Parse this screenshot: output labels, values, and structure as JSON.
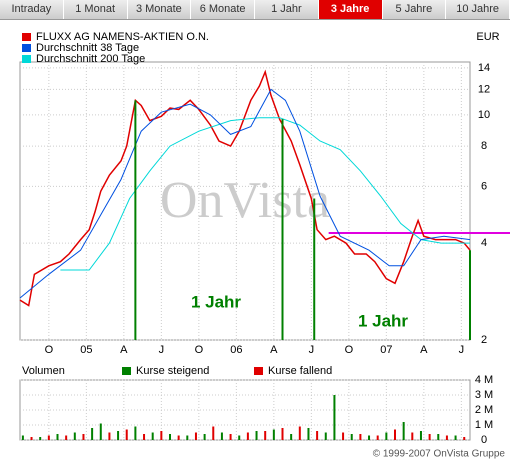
{
  "tabs": [
    "Intraday",
    "1 Monat",
    "3 Monate",
    "6 Monate",
    "1 Jahr",
    "3 Jahre",
    "5 Jahre",
    "10 Jahre"
  ],
  "active_tab": 5,
  "currency": "EUR",
  "watermark": "OnVista",
  "footer": "© 1999-2007 OnVista Gruppe",
  "chart_data": [
    {
      "type": "line",
      "log_y": true,
      "grid": true,
      "xlim": [
        0,
        156
      ],
      "ylim": [
        2,
        14.6
      ],
      "yticks": [
        2,
        4,
        6,
        8,
        10,
        12,
        14
      ],
      "xticks": [
        {
          "value": 10,
          "label": "O"
        },
        {
          "value": 23,
          "label": "05"
        },
        {
          "value": 36,
          "label": "A"
        },
        {
          "value": 49,
          "label": "J"
        },
        {
          "value": 62,
          "label": "O"
        },
        {
          "value": 75,
          "label": "06"
        },
        {
          "value": 88,
          "label": "A"
        },
        {
          "value": 101,
          "label": "J"
        },
        {
          "value": 114,
          "label": "O"
        },
        {
          "value": 127,
          "label": "07"
        },
        {
          "value": 140,
          "label": "A"
        },
        {
          "value": 153,
          "label": "J"
        }
      ],
      "series": [
        {
          "name": "FLUXX AG NAMENS-AKTIEN O.N.",
          "color": "#e00000",
          "x": [
            0,
            3,
            5,
            10,
            14,
            17,
            21,
            24,
            26,
            28,
            31,
            35,
            37,
            40,
            42,
            45,
            49,
            52,
            55,
            59,
            62,
            66,
            69,
            73,
            76,
            80,
            83,
            85,
            87,
            90,
            94,
            97,
            101,
            103,
            106,
            109,
            113,
            116,
            120,
            123,
            127,
            130,
            133,
            136,
            138,
            140,
            144,
            147,
            151,
            154,
            156
          ],
          "values": [
            2.66,
            2.56,
            3.2,
            3.4,
            3.5,
            3.7,
            4.1,
            4.4,
            5.0,
            5.8,
            6.5,
            7.2,
            8.0,
            11.1,
            10.7,
            9.6,
            9.9,
            10.5,
            10.4,
            11.1,
            10.4,
            9.3,
            8.3,
            8.0,
            8.9,
            11.1,
            12.3,
            13.6,
            11.5,
            9.7,
            8.3,
            7.0,
            5.5,
            4.4,
            4.1,
            4.2,
            4.0,
            3.7,
            3.7,
            3.5,
            3.1,
            3.0,
            3.5,
            4.2,
            4.7,
            4.2,
            4.1,
            4.1,
            4.1,
            4.0,
            3.8
          ]
        },
        {
          "name": "Durchschnitt 38 Tage",
          "color": "#0050e0",
          "x": [
            0,
            10,
            21,
            28,
            35,
            42,
            49,
            59,
            66,
            73,
            80,
            87,
            92,
            97,
            104,
            111,
            121,
            128,
            133,
            139,
            147,
            156
          ],
          "values": [
            2.7,
            3.2,
            3.8,
            4.9,
            6.3,
            8.9,
            10.2,
            10.8,
            10.0,
            8.7,
            9.2,
            12.0,
            11.1,
            8.9,
            5.6,
            4.2,
            3.8,
            3.4,
            3.4,
            4.1,
            4.2,
            4.1
          ]
        },
        {
          "name": "Durchschnitt 200 Tage",
          "color": "#00d8d8",
          "x": [
            14,
            24,
            31,
            38,
            45,
            52,
            62,
            73,
            83,
            90,
            97,
            104,
            111,
            118,
            125,
            132,
            139,
            146,
            156
          ],
          "values": [
            3.3,
            3.3,
            4.0,
            5.5,
            6.7,
            8.0,
            8.9,
            9.6,
            9.8,
            9.8,
            9.3,
            8.3,
            7.8,
            6.7,
            5.6,
            4.6,
            4.1,
            4.0,
            4.0
          ]
        }
      ],
      "markers": {
        "color": "#008000",
        "x": [
          40,
          91,
          102,
          156
        ]
      },
      "annotations": [
        "1 Jahr",
        "1 Jahr"
      ],
      "hline": {
        "value": 4.3,
        "x": 107,
        "color": "#e000e0"
      }
    },
    {
      "type": "bar",
      "title": "Volumen",
      "xlim": [
        0,
        156
      ],
      "ylim": [
        0,
        4000000
      ],
      "yticks": [
        {
          "value": 0,
          "label": "0"
        },
        {
          "value": 1000000,
          "label": "1 M"
        },
        {
          "value": 2000000,
          "label": "2 M"
        },
        {
          "value": 3000000,
          "label": "3 M"
        },
        {
          "value": 4000000,
          "label": "4 M"
        }
      ],
      "series": [
        {
          "name": "Kurse steigend",
          "color": "#008000",
          "x": [
            1,
            7,
            13,
            19,
            25,
            28,
            34,
            40,
            46,
            52,
            58,
            64,
            70,
            76,
            82,
            88,
            94,
            100,
            106,
            109,
            115,
            121,
            127,
            133,
            139,
            145,
            151
          ],
          "values": [
            300000,
            200000,
            400000,
            500000,
            800000,
            1100000,
            600000,
            900000,
            500000,
            400000,
            300000,
            400000,
            500000,
            300000,
            600000,
            700000,
            400000,
            800000,
            500000,
            3000000,
            400000,
            300000,
            500000,
            1200000,
            600000,
            400000,
            300000
          ]
        },
        {
          "name": "Kurse fallend",
          "color": "#e00000",
          "x": [
            4,
            10,
            16,
            22,
            31,
            37,
            43,
            49,
            55,
            61,
            67,
            73,
            79,
            85,
            91,
            97,
            103,
            112,
            118,
            124,
            130,
            136,
            142,
            148,
            154
          ],
          "values": [
            200000,
            300000,
            300000,
            400000,
            500000,
            700000,
            400000,
            600000,
            300000,
            500000,
            900000,
            400000,
            500000,
            600000,
            800000,
            900000,
            600000,
            500000,
            400000,
            300000,
            700000,
            500000,
            400000,
            300000,
            200000
          ]
        }
      ]
    }
  ]
}
